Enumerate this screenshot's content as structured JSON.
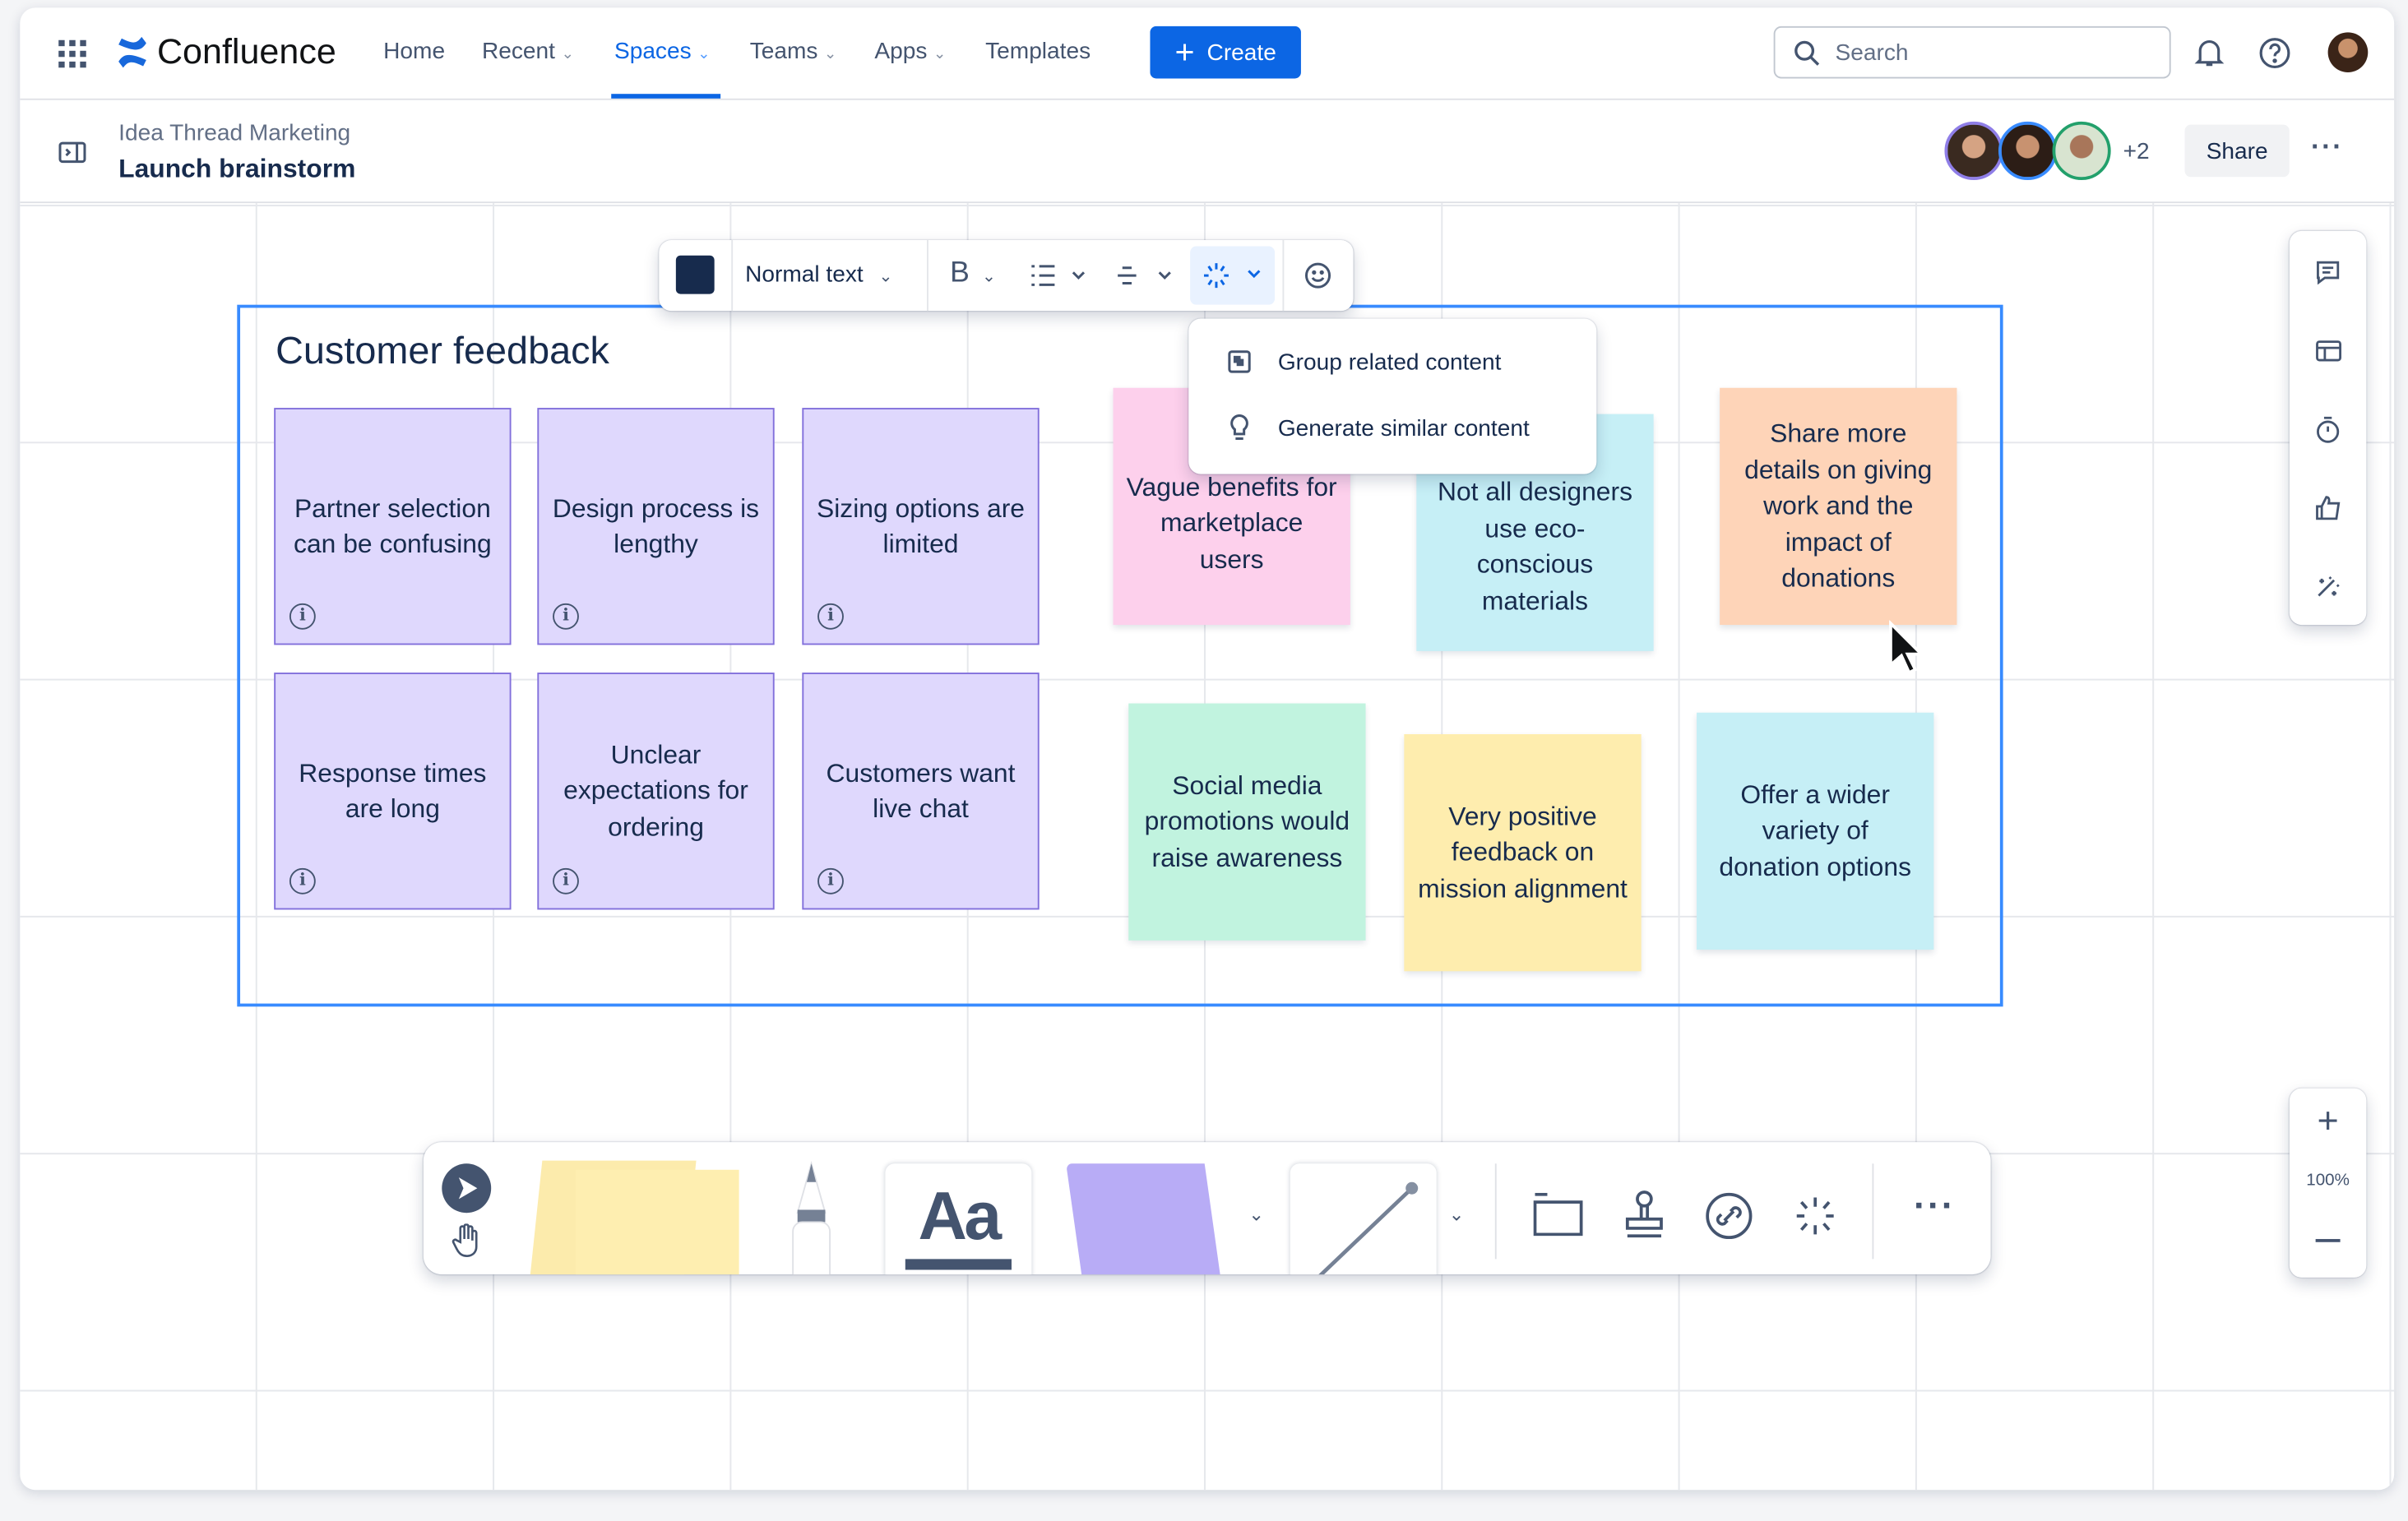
{
  "nav": {
    "app_name": "Confluence",
    "items": [
      {
        "label": "Home"
      },
      {
        "label": "Recent",
        "chevron": true
      },
      {
        "label": "Spaces",
        "chevron": true,
        "active": true
      },
      {
        "label": "Teams",
        "chevron": true
      },
      {
        "label": "Apps",
        "chevron": true
      },
      {
        "label": "Templates"
      }
    ],
    "create_label": "Create",
    "search_placeholder": "Search"
  },
  "page": {
    "space": "Idea Thread Marketing",
    "title": "Launch brainstorm",
    "extra_collaborators": "+2",
    "share_label": "Share"
  },
  "toolbar": {
    "text_style": "Normal text",
    "bold": "B",
    "text_color": "#172B4D"
  },
  "ai_menu": {
    "items": [
      "Group related content",
      "Generate similar content"
    ]
  },
  "frame": {
    "title": "Customer feedback"
  },
  "stickies_purple": [
    "Partner selection can be confusing",
    "Design process is lengthy",
    "Sizing options are limited",
    "Response times are long",
    "Unclear expectations for ordering",
    "Customers want live chat"
  ],
  "stickies_other": [
    {
      "text": "Vague benefits for marketplace users",
      "color": "#FDD0EC"
    },
    {
      "text": "Not all designers use eco-conscious materials",
      "color": "#C6EFF6"
    },
    {
      "text": "Share more details on giving work and the impact of donations",
      "color": "#FED4B8"
    },
    {
      "text": "Social media promotions would raise awareness",
      "color": "#C1F3DF"
    },
    {
      "text": "Very positive feedback on mission alignment",
      "color": "#FEEDAE"
    },
    {
      "text": "Offer a wider variety of donation options",
      "color": "#C6EFF6"
    }
  ],
  "zoom": {
    "level": "100%"
  },
  "bottom_tools": {
    "text_tool": "Aa"
  },
  "colors": {
    "accent": "#0C66E4",
    "frame_border": "#388BFF",
    "purple_sticky": "#DFD8FD"
  }
}
